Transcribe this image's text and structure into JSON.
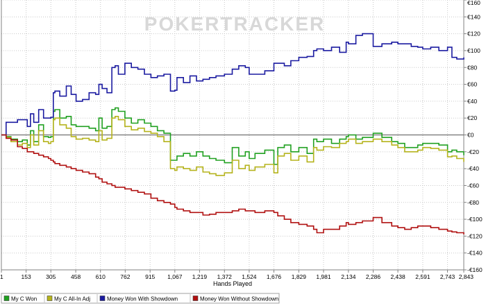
{
  "watermark": "POKERTRACKER",
  "chart_data": {
    "type": "line",
    "xlabel": "Hands Played",
    "ylabel": "",
    "xlim": [
      1,
      2843
    ],
    "ylim": [
      -160,
      160
    ],
    "x_ticks": [
      1,
      153,
      305,
      458,
      610,
      762,
      915,
      1067,
      1219,
      1372,
      1524,
      1676,
      1829,
      1981,
      2134,
      2286,
      2438,
      2591,
      2743,
      2843
    ],
    "x_tick_labels": [
      "1",
      "153",
      "305",
      "458",
      "610",
      "762",
      "915",
      "1,067",
      "1,219",
      "1,372",
      "1,524",
      "1,676",
      "1,829",
      "1,981",
      "2,134",
      "2,286",
      "2,438",
      "2,591",
      "2,743",
      "2,843"
    ],
    "y_ticks": [
      -160,
      -140,
      -120,
      -100,
      -80,
      -60,
      -40,
      -20,
      0,
      20,
      40,
      60,
      80,
      100,
      120,
      140,
      160
    ],
    "y_tick_labels": [
      "-€160",
      "-€140",
      "-€120",
      "-€100",
      "-€80",
      "-€60",
      "-€40",
      "-€20",
      "€0",
      "€20",
      "€40",
      "€60",
      "€80",
      "€100",
      "€120",
      "€140",
      "€160"
    ],
    "grid": true,
    "legend_position": "bottom-left",
    "series": [
      {
        "name": "My C Won",
        "color": "#20a020",
        "x": [
          1,
          30,
          60,
          100,
          130,
          160,
          180,
          200,
          230,
          260,
          290,
          305,
          320,
          330,
          360,
          400,
          430,
          460,
          500,
          540,
          580,
          600,
          620,
          650,
          680,
          700,
          720,
          760,
          800,
          840,
          880,
          920,
          960,
          1000,
          1040,
          1067,
          1080,
          1120,
          1160,
          1200,
          1240,
          1280,
          1320,
          1372,
          1420,
          1460,
          1500,
          1524,
          1560,
          1620,
          1676,
          1700,
          1740,
          1780,
          1829,
          1880,
          1920,
          1940,
          1981,
          2030,
          2080,
          2120,
          2134,
          2180,
          2220,
          2286,
          2340,
          2400,
          2438,
          2480,
          2520,
          2560,
          2591,
          2640,
          2690,
          2743,
          2770,
          2800,
          2843
        ],
        "y": [
          0,
          -2,
          -5,
          -8,
          -6,
          -12,
          5,
          -8,
          12,
          -2,
          -3,
          -2,
          28,
          30,
          20,
          22,
          12,
          10,
          10,
          8,
          5,
          20,
          8,
          10,
          30,
          32,
          28,
          20,
          14,
          18,
          14,
          10,
          5,
          2,
          -30,
          -30,
          -25,
          -22,
          -25,
          -20,
          -25,
          -28,
          -30,
          -33,
          -15,
          -25,
          -20,
          -28,
          -22,
          -18,
          -35,
          -15,
          -12,
          -20,
          -15,
          -22,
          -5,
          -8,
          -5,
          -10,
          -5,
          -2,
          0,
          -5,
          -3,
          2,
          -3,
          -8,
          -10,
          -15,
          -15,
          -12,
          -10,
          -10,
          -12,
          -20,
          -18,
          -20,
          -24
        ]
      },
      {
        "name": "My C All-In Adj",
        "color": "#b5b31c",
        "x": [
          1,
          30,
          60,
          100,
          130,
          160,
          180,
          200,
          230,
          260,
          290,
          305,
          320,
          330,
          360,
          400,
          430,
          460,
          500,
          540,
          580,
          600,
          620,
          650,
          680,
          700,
          720,
          760,
          800,
          840,
          880,
          920,
          960,
          1000,
          1040,
          1067,
          1080,
          1120,
          1160,
          1200,
          1240,
          1280,
          1320,
          1372,
          1420,
          1460,
          1500,
          1524,
          1560,
          1620,
          1676,
          1700,
          1740,
          1780,
          1829,
          1880,
          1920,
          1940,
          1981,
          2030,
          2080,
          2120,
          2134,
          2180,
          2220,
          2286,
          2340,
          2400,
          2438,
          2480,
          2520,
          2560,
          2591,
          2640,
          2690,
          2743,
          2770,
          2800,
          2843
        ],
        "y": [
          0,
          -3,
          -8,
          -12,
          -10,
          -15,
          0,
          -12,
          5,
          -8,
          -10,
          -8,
          18,
          20,
          12,
          8,
          -2,
          -5,
          -4,
          -6,
          -8,
          5,
          -6,
          -4,
          20,
          22,
          18,
          10,
          6,
          8,
          4,
          2,
          -2,
          -8,
          -40,
          -42,
          -38,
          -40,
          -42,
          -38,
          -44,
          -46,
          -48,
          -45,
          -30,
          -40,
          -36,
          -42,
          -38,
          -35,
          -45,
          -25,
          -22,
          -30,
          -25,
          -32,
          -15,
          -18,
          -14,
          -15,
          -10,
          -8,
          -5,
          -10,
          -8,
          -5,
          -8,
          -12,
          -15,
          -20,
          -20,
          -18,
          -15,
          -16,
          -18,
          -26,
          -25,
          -28,
          -32
        ]
      },
      {
        "name": "Money Won With Showdown",
        "color": "#1a1aa0",
        "x": [
          1,
          30,
          60,
          100,
          130,
          160,
          180,
          200,
          230,
          260,
          290,
          305,
          320,
          330,
          360,
          400,
          430,
          460,
          500,
          540,
          580,
          600,
          620,
          650,
          680,
          700,
          720,
          760,
          800,
          840,
          880,
          920,
          960,
          1000,
          1040,
          1067,
          1080,
          1120,
          1160,
          1200,
          1240,
          1280,
          1320,
          1372,
          1420,
          1460,
          1500,
          1524,
          1560,
          1620,
          1676,
          1700,
          1740,
          1780,
          1829,
          1880,
          1920,
          1940,
          1981,
          2030,
          2080,
          2120,
          2134,
          2180,
          2220,
          2286,
          2340,
          2400,
          2438,
          2480,
          2520,
          2560,
          2591,
          2640,
          2690,
          2743,
          2770,
          2800,
          2843
        ],
        "y": [
          0,
          15,
          15,
          18,
          18,
          10,
          25,
          15,
          30,
          20,
          20,
          21,
          50,
          52,
          46,
          58,
          48,
          40,
          42,
          50,
          48,
          60,
          55,
          50,
          80,
          82,
          72,
          85,
          80,
          78,
          72,
          68,
          70,
          72,
          52,
          53,
          68,
          62,
          70,
          64,
          66,
          68,
          70,
          72,
          78,
          82,
          80,
          72,
          72,
          76,
          85,
          85,
          82,
          88,
          92,
          93,
          100,
          102,
          100,
          104,
          98,
          110,
          108,
          118,
          120,
          105,
          108,
          110,
          108,
          108,
          105,
          104,
          102,
          104,
          100,
          104,
          92,
          90,
          92
        ]
      },
      {
        "name": "Money Won Without Showdown",
        "color": "#b01010",
        "x": [
          1,
          30,
          60,
          100,
          130,
          160,
          180,
          200,
          230,
          260,
          290,
          305,
          320,
          330,
          360,
          400,
          430,
          460,
          500,
          540,
          580,
          600,
          620,
          650,
          680,
          700,
          720,
          760,
          800,
          840,
          880,
          920,
          960,
          1000,
          1040,
          1067,
          1080,
          1120,
          1160,
          1200,
          1240,
          1280,
          1320,
          1372,
          1420,
          1460,
          1500,
          1524,
          1560,
          1620,
          1676,
          1700,
          1740,
          1780,
          1829,
          1880,
          1920,
          1940,
          1981,
          2030,
          2080,
          2120,
          2134,
          2180,
          2220,
          2286,
          2340,
          2400,
          2438,
          2480,
          2520,
          2560,
          2591,
          2640,
          2690,
          2743,
          2770,
          2800,
          2843
        ],
        "y": [
          0,
          -4,
          -6,
          -14,
          -16,
          -20,
          -20,
          -22,
          -24,
          -26,
          -28,
          -30,
          -32,
          -34,
          -36,
          -38,
          -40,
          -42,
          -44,
          -46,
          -50,
          -52,
          -56,
          -58,
          -60,
          -62,
          -62,
          -64,
          -66,
          -68,
          -70,
          -75,
          -78,
          -80,
          -82,
          -86,
          -88,
          -90,
          -92,
          -92,
          -95,
          -94,
          -92,
          -92,
          -90,
          -88,
          -90,
          -90,
          -92,
          -90,
          -92,
          -96,
          -100,
          -104,
          -106,
          -108,
          -112,
          -116,
          -112,
          -112,
          -108,
          -104,
          -106,
          -104,
          -102,
          -98,
          -104,
          -108,
          -110,
          -112,
          -110,
          -108,
          -108,
          -110,
          -112,
          -114,
          -115,
          -116,
          -118
        ]
      }
    ]
  }
}
